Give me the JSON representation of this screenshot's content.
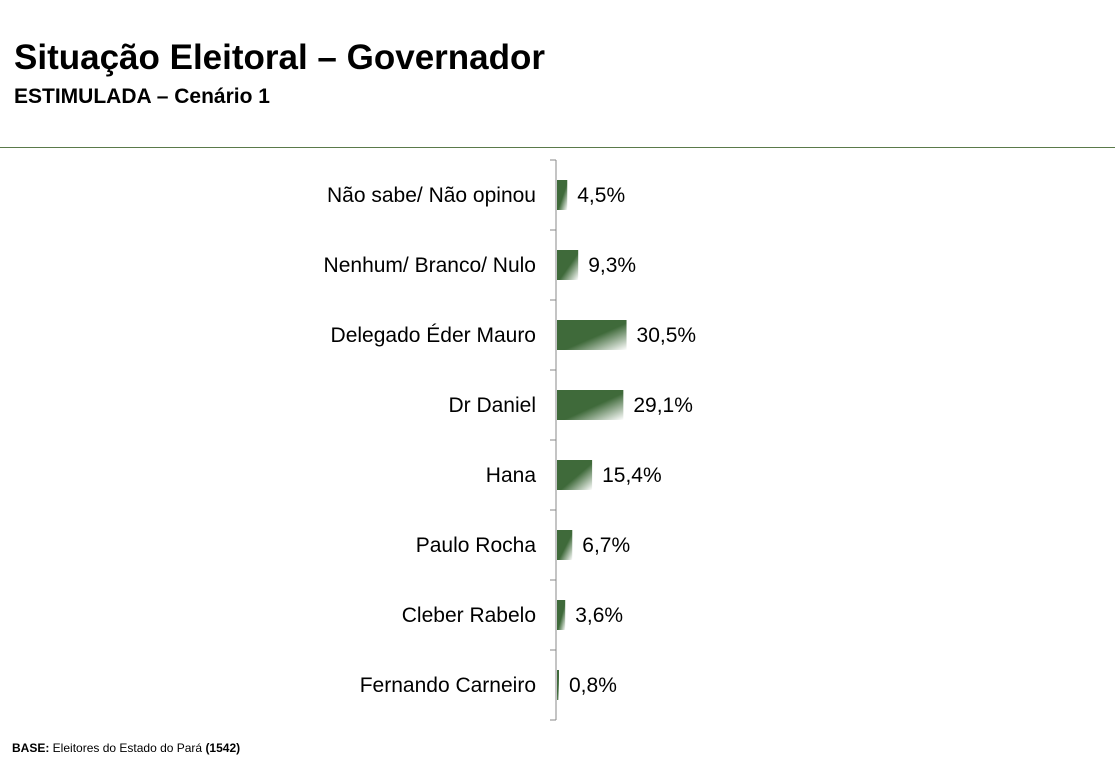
{
  "header": {
    "title": "Situação Eleitoral – Governador",
    "subtitle": "ESTIMULADA – Cenário 1"
  },
  "footer": {
    "base_label": "BASE:",
    "base_text": " Eleitores do Estado do Pará ",
    "base_count": "(1542)"
  },
  "colors": {
    "bar_dark": "#3f6a3a",
    "bar_light": "#ffffff",
    "rule": "#5a7a4a",
    "axis": "#888888"
  },
  "chart_data": {
    "type": "bar",
    "orientation": "horizontal",
    "categories": [
      "Não sabe/ Não opinou",
      "Nenhum/ Branco/ Nulo",
      "Delegado Éder Mauro",
      "Dr Daniel",
      "Hana",
      "Paulo Rocha",
      "Cleber Rabelo",
      "Fernando Carneiro"
    ],
    "values": [
      4.5,
      9.3,
      30.5,
      29.1,
      15.4,
      6.7,
      3.6,
      0.8
    ],
    "labels": [
      "4,5%",
      "9,3%",
      "30,5%",
      "29,1%",
      "15,4%",
      "6,7%",
      "3,6%",
      "0,8%"
    ],
    "xlim": [
      0,
      100
    ],
    "grid": false,
    "legend": "none"
  }
}
